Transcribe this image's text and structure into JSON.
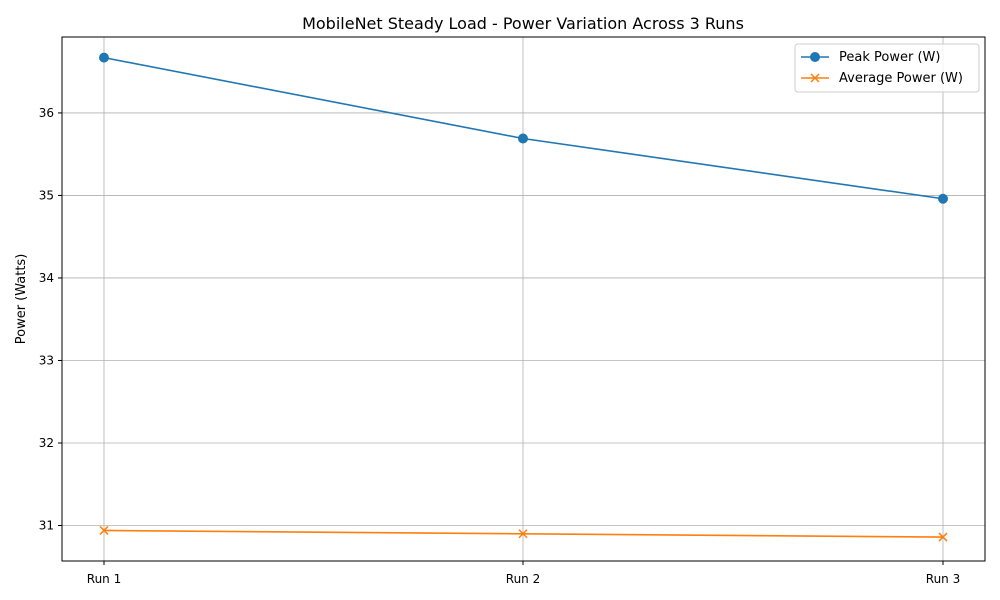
{
  "chart_data": {
    "type": "line",
    "title": "MobileNet Steady Load - Power Variation Across 3 Runs",
    "xlabel": "",
    "ylabel": "Power (Watts)",
    "categories": [
      "Run 1",
      "Run 2",
      "Run 3"
    ],
    "ylim": [
      30.57,
      36.92
    ],
    "yticks": [
      31,
      32,
      33,
      34,
      35,
      36
    ],
    "grid": true,
    "legend_position": "top-right",
    "series": [
      {
        "name": "Peak Power (W)",
        "values": [
          36.67,
          35.69,
          34.96
        ],
        "color": "#1f77b4",
        "marker": "circle"
      },
      {
        "name": "Average Power (W)",
        "values": [
          30.94,
          30.9,
          30.86
        ],
        "color": "#ff7f0e",
        "marker": "x"
      }
    ]
  }
}
